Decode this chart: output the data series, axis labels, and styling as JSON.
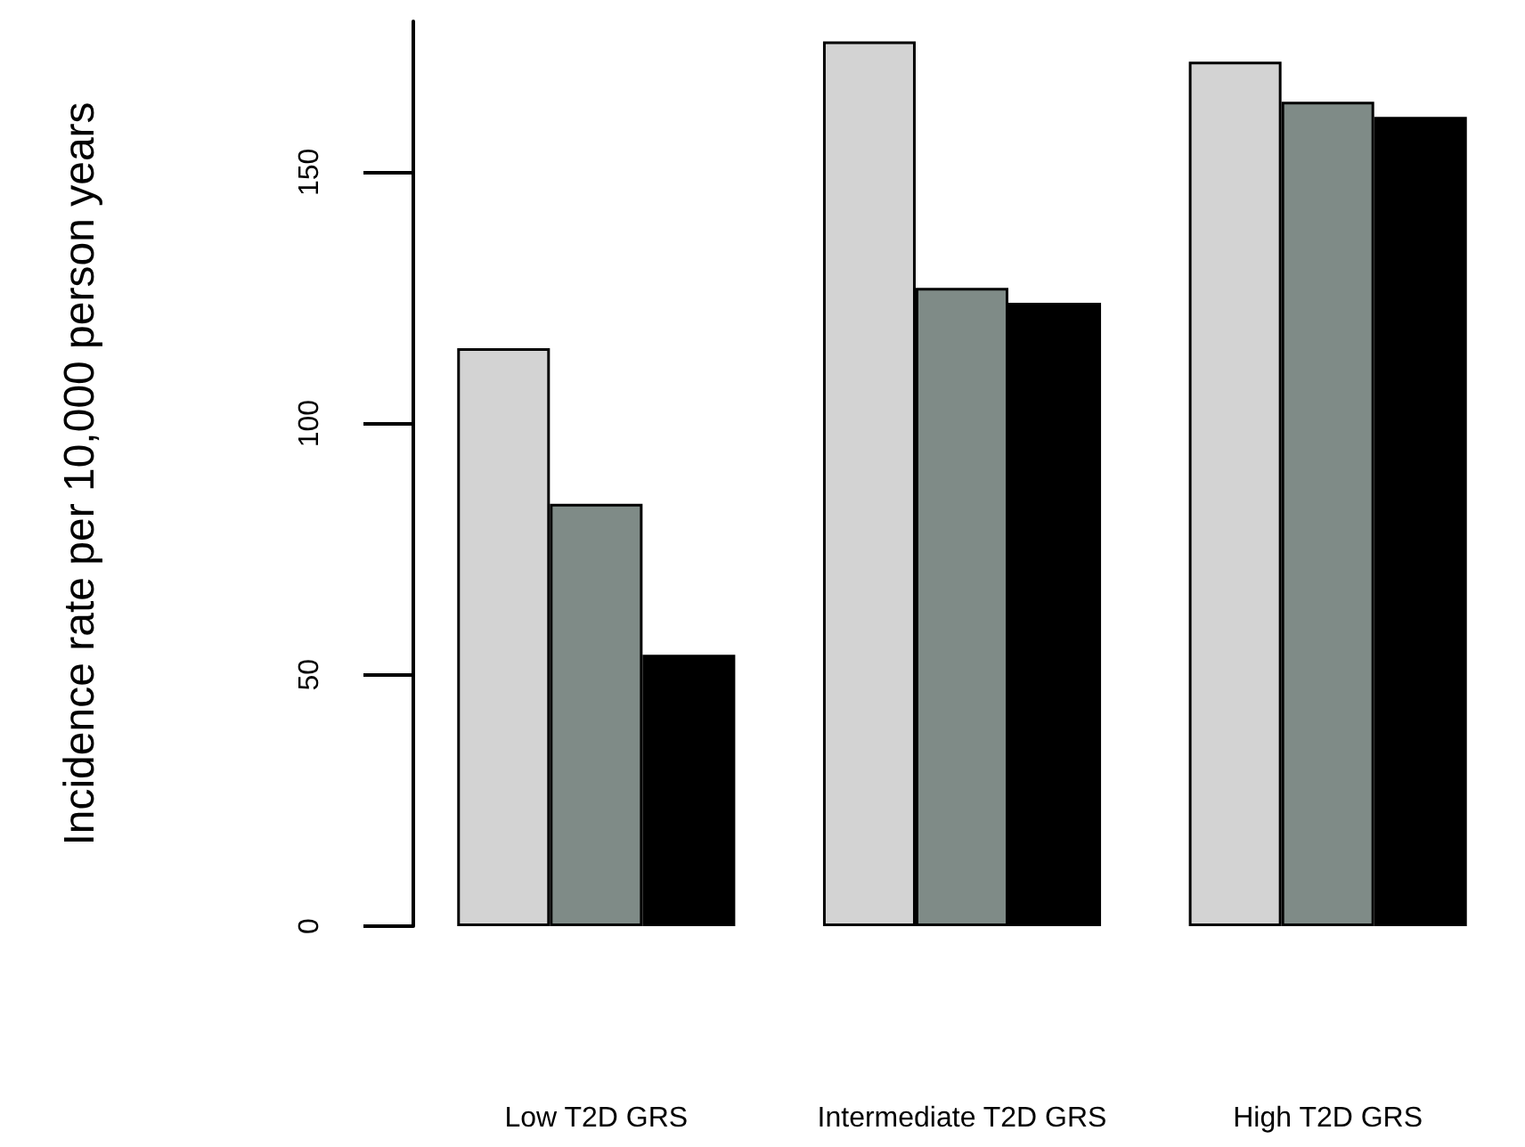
{
  "chart_data": {
    "type": "bar",
    "ylabel": "Incidence rate per 10,000 person years",
    "categories": [
      "Low T2D GRS",
      "Intermediate T2D GRS",
      "High T2D GRS"
    ],
    "series": [
      {
        "color": "#d3d3d3",
        "values": [
          115,
          176,
          172
        ]
      },
      {
        "color": "#7f8b87",
        "values": [
          84,
          127,
          164
        ]
      },
      {
        "color": "#000000",
        "values": [
          54,
          124,
          161
        ]
      }
    ],
    "ylim": [
      0,
      180
    ],
    "yticks": [
      0,
      50,
      100,
      150
    ],
    "grid": false
  }
}
